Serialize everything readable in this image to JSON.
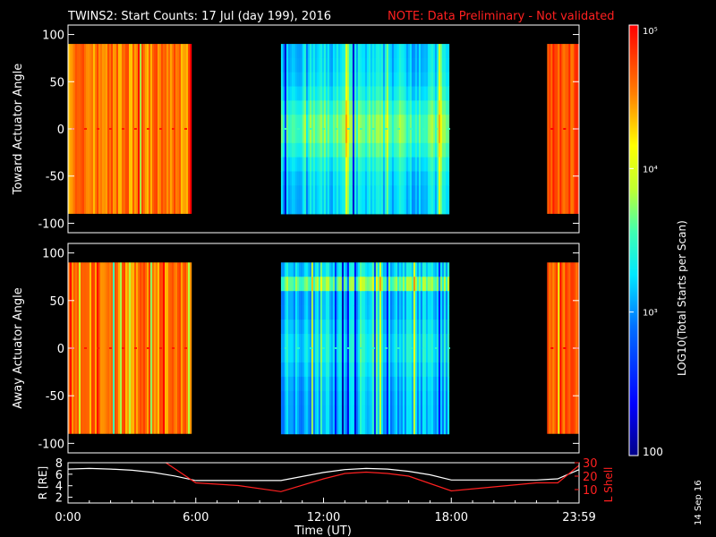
{
  "title": {
    "main": "TWINS2: Start Counts: 17 Jul (day 199), 2016",
    "note": "NOTE: Data Preliminary - Not validated",
    "note_color": "#ff2020"
  },
  "date_stamp": "14 Sep 16",
  "colorbar": {
    "label": "LOG10(Total Starts per Scan)",
    "min": 100,
    "max": 100000,
    "tick_labels": [
      "100",
      "10³",
      "10⁴",
      "10⁵"
    ],
    "tick_values": [
      100,
      1000,
      10000,
      100000
    ]
  },
  "chart_data": [
    {
      "name": "toward-panel",
      "type": "heatmap",
      "ylabel": "Toward Actuator Angle",
      "xlim": [
        0,
        24
      ],
      "ylim": [
        -110,
        110
      ],
      "yticks": [
        -100,
        -50,
        0,
        50,
        100
      ],
      "data_angle_range": [
        -90,
        90
      ],
      "segments": [
        {
          "start": 0,
          "end": 5.8,
          "log_level": 4.55
        },
        {
          "start": 10.0,
          "end": 17.9,
          "log_level": 3.2
        },
        {
          "start": 22.5,
          "end": 24.0,
          "log_level": 4.7
        }
      ]
    },
    {
      "name": "away-panel",
      "type": "heatmap",
      "ylabel": "Away Actuator Angle",
      "xlim": [
        0,
        24
      ],
      "ylim": [
        -110,
        110
      ],
      "yticks": [
        -100,
        -50,
        0,
        50,
        100
      ],
      "data_angle_range": [
        -90,
        90
      ],
      "segments": [
        {
          "start": 0,
          "end": 5.8,
          "log_level": 4.55
        },
        {
          "start": 10.0,
          "end": 17.9,
          "log_level": 3.1
        },
        {
          "start": 22.5,
          "end": 24.0,
          "log_level": 4.7
        }
      ]
    },
    {
      "name": "orbit-panel",
      "type": "line",
      "xlabel": "Time (UT)",
      "xlim": [
        0,
        24
      ],
      "xticks": [
        0,
        6,
        12,
        18,
        24
      ],
      "xtick_labels": [
        "0:00",
        "6:00",
        "12:00",
        "18:00",
        "23:59"
      ],
      "left_axis": {
        "label": "R [RE]",
        "ylim": [
          1,
          8
        ],
        "ticks": [
          2,
          4,
          6,
          8
        ]
      },
      "right_axis": {
        "label": "L Shell",
        "ylim": [
          0,
          30
        ],
        "ticks": [
          10,
          20,
          30
        ]
      },
      "series": [
        {
          "name": "R [RE]",
          "axis": "left",
          "color": "#ffffff",
          "x": [
            0,
            1,
            2,
            3,
            4,
            5,
            6,
            7,
            8,
            9,
            10,
            11,
            12,
            13,
            14,
            15,
            16,
            17,
            18,
            19,
            20,
            21,
            22,
            23,
            24
          ],
          "y": [
            6.9,
            7.0,
            6.9,
            6.7,
            6.3,
            5.7,
            4.9,
            4.9,
            4.9,
            4.9,
            4.9,
            5.6,
            6.3,
            6.8,
            7.0,
            6.9,
            6.5,
            5.9,
            5.0,
            5.0,
            5.0,
            5.0,
            5.0,
            5.2,
            6.8
          ]
        },
        {
          "name": "L Shell",
          "axis": "right",
          "color": "#ff2020",
          "x": [
            4.5,
            6,
            8,
            10,
            12,
            13,
            14,
            15,
            16,
            18,
            20,
            22,
            23,
            24
          ],
          "y": [
            31,
            15,
            13,
            8.5,
            18,
            22,
            23,
            22,
            20,
            9,
            12,
            15,
            15,
            28
          ]
        }
      ]
    }
  ]
}
